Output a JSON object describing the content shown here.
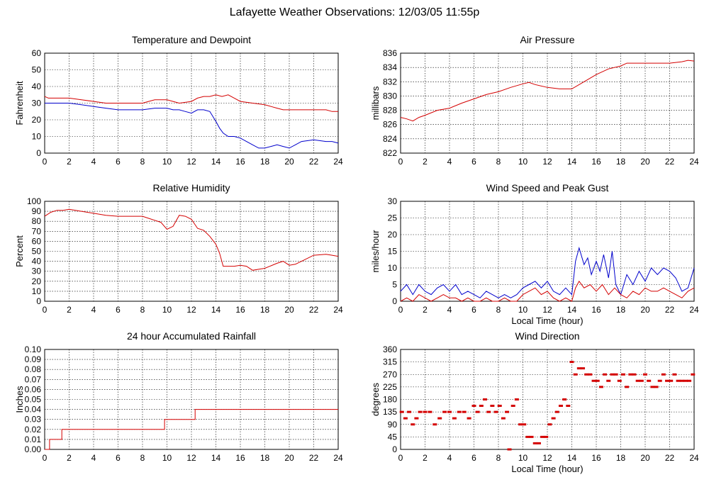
{
  "page": {
    "title": "Lafayette Weather Observations: 12/03/05 11:55p"
  },
  "colors": {
    "red": "#d40000",
    "blue": "#0000cc"
  },
  "chart_data": [
    {
      "id": "temp",
      "type": "line",
      "title": "Temperature and Dewpoint",
      "ylabel": "Fahrenheit",
      "xlabel": "",
      "xlim": [
        0,
        24
      ],
      "ylim": [
        0,
        60
      ],
      "xticks": [
        0,
        2,
        4,
        6,
        8,
        10,
        12,
        14,
        16,
        18,
        20,
        22,
        24
      ],
      "yticks": [
        0,
        10,
        20,
        30,
        40,
        50,
        60
      ],
      "grid": true,
      "series": [
        {
          "color": "#d40000",
          "x": [
            0,
            0.3,
            1,
            2,
            3,
            4,
            5,
            6,
            7,
            8,
            8.5,
            9,
            10,
            10.5,
            11,
            12,
            12.5,
            13,
            13.5,
            14,
            14.5,
            15,
            15.5,
            16,
            17,
            18,
            18.5,
            19,
            19.5,
            20,
            21,
            22,
            23,
            23.5,
            24
          ],
          "y": [
            34,
            33,
            33,
            33,
            32,
            31,
            30,
            30,
            30,
            30,
            31,
            32,
            32,
            31,
            30,
            31,
            33,
            34,
            34,
            35,
            34,
            35,
            33,
            31,
            30,
            29,
            28,
            27,
            26,
            26,
            26,
            26,
            26,
            25,
            25
          ]
        },
        {
          "color": "#0000cc",
          "x": [
            0,
            0.5,
            1,
            2,
            3,
            4,
            5,
            6,
            7,
            8,
            9,
            10,
            10.5,
            11,
            11.5,
            12,
            12.5,
            13,
            13.5,
            14,
            14.3,
            14.6,
            15,
            15.5,
            16,
            16.5,
            17,
            17.5,
            18,
            18.5,
            19,
            19.5,
            20,
            20.5,
            21,
            22,
            23,
            23.5,
            24
          ],
          "y": [
            30,
            30,
            30,
            30,
            29,
            28,
            27,
            26,
            26,
            26,
            27,
            27,
            26,
            26,
            25,
            24,
            26,
            26,
            25,
            19,
            15,
            12,
            10,
            10,
            9,
            7,
            5,
            3,
            3,
            4,
            5,
            4,
            3,
            5,
            7,
            8,
            7,
            7,
            6
          ]
        }
      ]
    },
    {
      "id": "pressure",
      "type": "line",
      "title": "Air Pressure",
      "ylabel": "millibars",
      "xlabel": "",
      "xlim": [
        0,
        24
      ],
      "ylim": [
        822,
        836
      ],
      "xticks": [
        0,
        2,
        4,
        6,
        8,
        10,
        12,
        14,
        16,
        18,
        20,
        22,
        24
      ],
      "yticks": [
        822,
        824,
        826,
        828,
        830,
        832,
        834,
        836
      ],
      "grid": true,
      "series": [
        {
          "color": "#d40000",
          "x": [
            0,
            0.5,
            1,
            1.5,
            2,
            3,
            4,
            5,
            6,
            7,
            8,
            9,
            10,
            10.5,
            11,
            12,
            13,
            14,
            15,
            16,
            17,
            18,
            18.5,
            19,
            20,
            21,
            22,
            23,
            23.5,
            24
          ],
          "y": [
            827,
            826.8,
            826.5,
            827,
            827.3,
            828,
            828.3,
            829,
            829.6,
            830.2,
            830.6,
            831.2,
            831.7,
            831.9,
            831.6,
            831.2,
            831,
            831,
            832,
            833,
            833.8,
            834.2,
            834.6,
            834.6,
            834.6,
            834.6,
            834.6,
            834.8,
            835,
            834.9
          ]
        }
      ]
    },
    {
      "id": "humidity",
      "type": "line",
      "title": "Relative Humidity",
      "ylabel": "Percent",
      "xlabel": "",
      "xlim": [
        0,
        24
      ],
      "ylim": [
        0,
        100
      ],
      "xticks": [
        0,
        2,
        4,
        6,
        8,
        10,
        12,
        14,
        16,
        18,
        20,
        22,
        24
      ],
      "yticks": [
        0,
        10,
        20,
        30,
        40,
        50,
        60,
        70,
        80,
        90,
        100
      ],
      "grid": true,
      "series": [
        {
          "color": "#d40000",
          "x": [
            0,
            0.5,
            1,
            1.5,
            2,
            3,
            4,
            5,
            6,
            7,
            8,
            8.5,
            9,
            9.5,
            10,
            10.5,
            11,
            11.5,
            12,
            12.5,
            13,
            13.5,
            14,
            14.3,
            14.6,
            15,
            15.5,
            16,
            16.5,
            17,
            17.5,
            18,
            19,
            19.5,
            20,
            20.5,
            21,
            22,
            23,
            23.5,
            24
          ],
          "y": [
            85,
            89,
            91,
            91,
            92,
            90,
            88,
            86,
            85,
            85,
            85,
            83,
            81,
            79,
            72,
            75,
            86,
            85,
            82,
            73,
            71,
            65,
            57,
            48,
            35,
            35,
            35,
            36,
            35,
            31,
            32,
            33,
            38,
            40,
            36,
            37,
            40,
            46,
            47,
            46,
            45
          ]
        }
      ]
    },
    {
      "id": "wind",
      "type": "line",
      "title": "Wind Speed and Peak Gust",
      "ylabel": "miles/hour",
      "xlabel": "Local Time (hour)",
      "xlim": [
        0,
        24
      ],
      "ylim": [
        0,
        30
      ],
      "xticks": [
        0,
        2,
        4,
        6,
        8,
        10,
        12,
        14,
        16,
        18,
        20,
        22,
        24
      ],
      "yticks": [
        0,
        5,
        10,
        15,
        20,
        25,
        30
      ],
      "grid": true,
      "series": [
        {
          "color": "#0000cc",
          "x": [
            0,
            0.5,
            1,
            1.5,
            2,
            2.5,
            3,
            3.5,
            4,
            4.5,
            5,
            5.5,
            6,
            6.5,
            7,
            7.5,
            8,
            8.5,
            9,
            9.5,
            10,
            10.5,
            11,
            11.5,
            12,
            12.5,
            13,
            13.5,
            14,
            14.3,
            14.6,
            15,
            15.3,
            15.6,
            16,
            16.3,
            16.6,
            17,
            17.3,
            17.6,
            18,
            18.5,
            19,
            19.5,
            20,
            20.5,
            21,
            21.5,
            22,
            22.5,
            23,
            23.5,
            24
          ],
          "y": [
            3,
            5,
            2,
            5,
            3,
            2,
            4,
            5,
            3,
            5,
            2,
            3,
            2,
            1,
            3,
            2,
            1,
            2,
            1,
            2,
            4,
            5,
            6,
            4,
            6,
            3,
            2,
            4,
            2,
            12,
            16,
            11,
            13,
            8,
            12,
            9,
            14,
            7,
            15,
            5,
            2,
            8,
            5,
            9,
            6,
            10,
            8,
            10,
            9,
            7,
            3,
            4,
            10
          ]
        },
        {
          "color": "#d40000",
          "x": [
            0,
            0.5,
            1,
            1.5,
            2,
            2.5,
            3,
            3.5,
            4,
            4.5,
            5,
            5.5,
            6,
            6.5,
            7,
            7.5,
            8,
            8.5,
            9,
            9.5,
            10,
            10.5,
            11,
            11.5,
            12,
            12.5,
            13,
            13.5,
            14,
            14.3,
            14.6,
            15,
            15.5,
            16,
            16.5,
            17,
            17.5,
            18,
            18.5,
            19,
            19.5,
            20,
            20.5,
            21,
            21.5,
            22,
            22.5,
            23,
            23.5,
            24
          ],
          "y": [
            0,
            1,
            0,
            2,
            1,
            0,
            1,
            2,
            1,
            1,
            0,
            1,
            0,
            0,
            1,
            0,
            0,
            1,
            0,
            0,
            2,
            3,
            4,
            2,
            3,
            1,
            0,
            1,
            0,
            4,
            6,
            4,
            5,
            3,
            5,
            2,
            4,
            2,
            1,
            3,
            2,
            4,
            3,
            3,
            4,
            3,
            2,
            1,
            3,
            4
          ]
        }
      ]
    },
    {
      "id": "rain",
      "type": "line",
      "title": "24 hour Accumulated Rainfall",
      "ylabel": "Inches",
      "xlabel": "",
      "xlim": [
        0,
        24
      ],
      "ylim": [
        0,
        0.1
      ],
      "xticks": [
        0,
        2,
        4,
        6,
        8,
        10,
        12,
        14,
        16,
        18,
        20,
        22,
        24
      ],
      "yticks": [
        "0.00",
        "0.01",
        "0.02",
        "0.03",
        "0.04",
        "0.05",
        "0.06",
        "0.07",
        "0.08",
        "0.09",
        "0.10"
      ],
      "grid": true,
      "series": [
        {
          "color": "#d40000",
          "x": [
            0,
            0.4,
            0.4,
            1.4,
            1.4,
            9.8,
            9.8,
            12.3,
            12.3,
            24
          ],
          "y": [
            0,
            0,
            0.01,
            0.01,
            0.02,
            0.02,
            0.03,
            0.03,
            0.04,
            0.04
          ]
        }
      ]
    },
    {
      "id": "direction",
      "type": "scatter",
      "title": "Wind Direction",
      "ylabel": "degrees",
      "xlabel": "Local Time (hour)",
      "xlim": [
        0,
        24
      ],
      "ylim": [
        0,
        360
      ],
      "xticks": [
        0,
        2,
        4,
        6,
        8,
        10,
        12,
        14,
        16,
        18,
        20,
        22,
        24
      ],
      "yticks": [
        0,
        45,
        90,
        135,
        180,
        225,
        270,
        315,
        360
      ],
      "grid": true,
      "series": [
        {
          "color": "#d40000",
          "x": [
            0.1,
            0.4,
            0.7,
            1,
            1.3,
            1.6,
            2,
            2.4,
            2.8,
            3.2,
            3.6,
            4,
            4.4,
            4.8,
            5.2,
            5.6,
            6,
            6.3,
            6.6,
            6.9,
            7.2,
            7.5,
            7.8,
            8.1,
            8.4,
            8.7,
            8.9,
            9.2,
            9.5,
            9.8,
            10.1,
            10.4,
            10.7,
            11,
            11.3,
            11.6,
            11.9,
            12.2,
            12.5,
            12.8,
            13.1,
            13.4,
            13.7,
            14,
            14.3,
            14.6,
            14.9,
            15.2,
            15.5,
            15.8,
            16.1,
            16.4,
            16.7,
            17,
            17.3,
            17.6,
            17.9,
            18.2,
            18.5,
            18.8,
            19.1,
            19.4,
            19.7,
            20,
            20.3,
            20.6,
            20.9,
            21.2,
            21.5,
            21.8,
            22.1,
            22.4,
            22.7,
            23,
            23.3,
            23.6,
            23.9
          ],
          "y": [
            135,
            112,
            135,
            90,
            112,
            135,
            135,
            135,
            90,
            112,
            135,
            135,
            112,
            135,
            135,
            112,
            157,
            135,
            157,
            180,
            135,
            157,
            135,
            157,
            112,
            135,
            0,
            157,
            180,
            90,
            90,
            45,
            45,
            22,
            22,
            45,
            45,
            90,
            112,
            135,
            157,
            180,
            157,
            315,
            270,
            292,
            292,
            270,
            270,
            247,
            247,
            225,
            270,
            247,
            270,
            270,
            247,
            270,
            225,
            270,
            270,
            247,
            247,
            270,
            247,
            225,
            225,
            247,
            270,
            247,
            247,
            270,
            247,
            247,
            247,
            247,
            270
          ]
        }
      ]
    }
  ]
}
